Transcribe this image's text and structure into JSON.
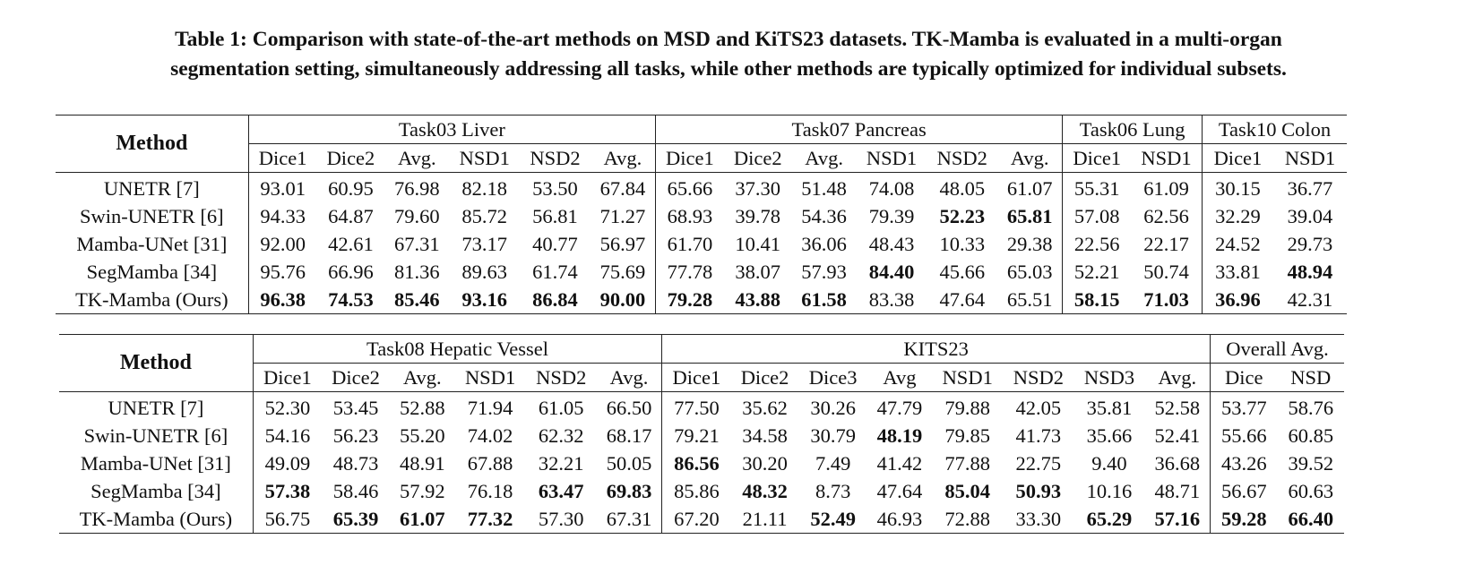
{
  "caption": {
    "line1": "Table 1: Comparison with state-of-the-art methods on MSD and KiTS23 datasets. TK-Mamba is evaluated in a multi-organ",
    "line2": "segmentation setting, simultaneously addressing all tasks, while other methods are typically optimized for individual subsets."
  },
  "table1": {
    "method_header": "Method",
    "groups": [
      {
        "label": "Task03 Liver",
        "columns": [
          "Dice1",
          "Dice2",
          "Avg.",
          "NSD1",
          "NSD2",
          "Avg."
        ]
      },
      {
        "label": "Task07 Pancreas",
        "columns": [
          "Dice1",
          "Dice2",
          "Avg.",
          "NSD1",
          "NSD2",
          "Avg."
        ]
      },
      {
        "label": "Task06 Lung",
        "columns": [
          "Dice1",
          "NSD1"
        ]
      },
      {
        "label": "Task10 Colon",
        "columns": [
          "Dice1",
          "NSD1"
        ]
      }
    ],
    "rows": [
      {
        "method": "UNETR [7]",
        "values": [
          "93.01",
          "60.95",
          "76.98",
          "82.18",
          "53.50",
          "67.84",
          "65.66",
          "37.30",
          "51.48",
          "74.08",
          "48.05",
          "61.07",
          "55.31",
          "61.09",
          "30.15",
          "36.77"
        ],
        "bold": []
      },
      {
        "method": "Swin-UNETR [6]",
        "values": [
          "94.33",
          "64.87",
          "79.60",
          "85.72",
          "56.81",
          "71.27",
          "68.93",
          "39.78",
          "54.36",
          "79.39",
          "52.23",
          "65.81",
          "57.08",
          "62.56",
          "32.29",
          "39.04"
        ],
        "bold": [
          10,
          11
        ]
      },
      {
        "method": "Mamba-UNet [31]",
        "values": [
          "92.00",
          "42.61",
          "67.31",
          "73.17",
          "40.77",
          "56.97",
          "61.70",
          "10.41",
          "36.06",
          "48.43",
          "10.33",
          "29.38",
          "22.56",
          "22.17",
          "24.52",
          "29.73"
        ],
        "bold": []
      },
      {
        "method": "SegMamba [34]",
        "values": [
          "95.76",
          "66.96",
          "81.36",
          "89.63",
          "61.74",
          "75.69",
          "77.78",
          "38.07",
          "57.93",
          "84.40",
          "45.66",
          "65.03",
          "52.21",
          "50.74",
          "33.81",
          "48.94"
        ],
        "bold": [
          9,
          15
        ]
      },
      {
        "method": "TK-Mamba (Ours)",
        "values": [
          "96.38",
          "74.53",
          "85.46",
          "93.16",
          "86.84",
          "90.00",
          "79.28",
          "43.88",
          "61.58",
          "83.38",
          "47.64",
          "65.51",
          "58.15",
          "71.03",
          "36.96",
          "42.31"
        ],
        "bold": [
          0,
          1,
          2,
          3,
          4,
          5,
          6,
          7,
          8,
          12,
          13,
          14
        ]
      }
    ]
  },
  "table2": {
    "method_header": "Method",
    "groups": [
      {
        "label": "Task08 Hepatic Vessel",
        "columns": [
          "Dice1",
          "Dice2",
          "Avg.",
          "NSD1",
          "NSD2",
          "Avg."
        ]
      },
      {
        "label": "KITS23",
        "columns": [
          "Dice1",
          "Dice2",
          "Dice3",
          "Avg",
          "NSD1",
          "NSD2",
          "NSD3",
          "Avg."
        ]
      },
      {
        "label": "Overall Avg.",
        "columns": [
          "Dice",
          "NSD"
        ]
      }
    ],
    "rows": [
      {
        "method": "UNETR [7]",
        "values": [
          "52.30",
          "53.45",
          "52.88",
          "71.94",
          "61.05",
          "66.50",
          "77.50",
          "35.62",
          "30.26",
          "47.79",
          "79.88",
          "42.05",
          "35.81",
          "52.58",
          "53.77",
          "58.76"
        ],
        "bold": []
      },
      {
        "method": "Swin-UNETR [6]",
        "values": [
          "54.16",
          "56.23",
          "55.20",
          "74.02",
          "62.32",
          "68.17",
          "79.21",
          "34.58",
          "30.79",
          "48.19",
          "79.85",
          "41.73",
          "35.66",
          "52.41",
          "55.66",
          "60.85"
        ],
        "bold": [
          9
        ]
      },
      {
        "method": "Mamba-UNet [31]",
        "values": [
          "49.09",
          "48.73",
          "48.91",
          "67.88",
          "32.21",
          "50.05",
          "86.56",
          "30.20",
          "7.49",
          "41.42",
          "77.88",
          "22.75",
          "9.40",
          "36.68",
          "43.26",
          "39.52"
        ],
        "bold": [
          6
        ]
      },
      {
        "method": "SegMamba [34]",
        "values": [
          "57.38",
          "58.46",
          "57.92",
          "76.18",
          "63.47",
          "69.83",
          "85.86",
          "48.32",
          "8.73",
          "47.64",
          "85.04",
          "50.93",
          "10.16",
          "48.71",
          "56.67",
          "60.63"
        ],
        "bold": [
          0,
          4,
          5,
          7,
          10,
          11
        ]
      },
      {
        "method": "TK-Mamba (Ours)",
        "values": [
          "56.75",
          "65.39",
          "61.07",
          "77.32",
          "57.30",
          "67.31",
          "67.20",
          "21.11",
          "52.49",
          "46.93",
          "72.88",
          "33.30",
          "65.29",
          "57.16",
          "59.28",
          "66.40"
        ],
        "bold": [
          1,
          2,
          3,
          8,
          12,
          13,
          14,
          15
        ]
      }
    ]
  }
}
